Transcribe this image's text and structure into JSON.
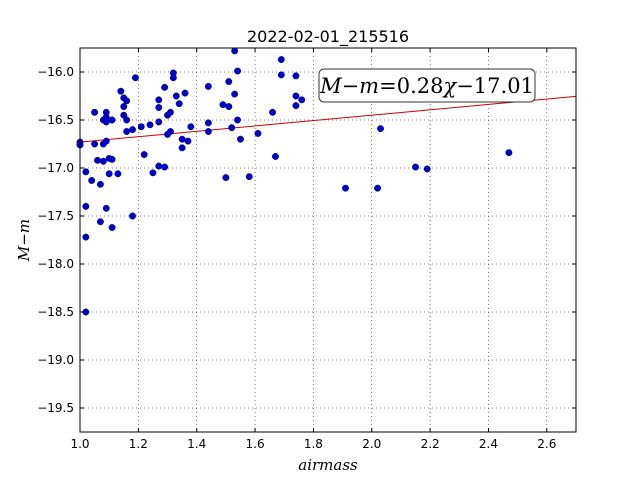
{
  "chart_data": {
    "type": "scatter",
    "title": "2022-02-01_215516",
    "xlabel": "airmass",
    "ylabel": "M−m",
    "xlim": [
      1.0,
      2.7
    ],
    "ylim": [
      -19.75,
      -15.75
    ],
    "x_ticks": [
      1.0,
      1.2,
      1.4,
      1.6,
      1.8,
      2.0,
      2.2,
      2.4,
      2.6
    ],
    "x_tick_labels": [
      "1.0",
      "1.2",
      "1.4",
      "1.6",
      "1.8",
      "2.0",
      "2.2",
      "2.4",
      "2.6"
    ],
    "y_ticks": [
      -16.0,
      -16.5,
      -17.0,
      -17.5,
      -18.0,
      -18.5,
      -19.0,
      -19.5
    ],
    "y_tick_labels": [
      "−16.0",
      "−16.5",
      "−17.0",
      "−17.5",
      "−18.0",
      "−18.5",
      "−19.0",
      "−19.5"
    ],
    "grid": true,
    "point_color": "#0000cc",
    "fit_color": "#cc0000",
    "fit": {
      "slope": 0.28,
      "intercept": -17.01
    },
    "annotation": {
      "lhs": "M−m",
      "eq": "=",
      "rhs_num": "0.28",
      "rhs_var": "χ",
      "rhs_tail": "−17.01"
    },
    "points": [
      {
        "x": 1.0,
        "y": -16.73
      },
      {
        "x": 1.0,
        "y": -16.76
      },
      {
        "x": 1.02,
        "y": -17.04
      },
      {
        "x": 1.02,
        "y": -17.4
      },
      {
        "x": 1.02,
        "y": -17.72
      },
      {
        "x": 1.02,
        "y": -18.5
      },
      {
        "x": 1.04,
        "y": -17.13
      },
      {
        "x": 1.05,
        "y": -16.75
      },
      {
        "x": 1.05,
        "y": -16.42
      },
      {
        "x": 1.06,
        "y": -16.92
      },
      {
        "x": 1.07,
        "y": -17.17
      },
      {
        "x": 1.07,
        "y": -17.56
      },
      {
        "x": 1.08,
        "y": -16.5
      },
      {
        "x": 1.08,
        "y": -16.75
      },
      {
        "x": 1.08,
        "y": -16.93
      },
      {
        "x": 1.09,
        "y": -16.52
      },
      {
        "x": 1.09,
        "y": -17.42
      },
      {
        "x": 1.09,
        "y": -16.47
      },
      {
        "x": 1.09,
        "y": -16.42
      },
      {
        "x": 1.09,
        "y": -16.72
      },
      {
        "x": 1.1,
        "y": -16.9
      },
      {
        "x": 1.1,
        "y": -17.06
      },
      {
        "x": 1.11,
        "y": -16.5
      },
      {
        "x": 1.11,
        "y": -16.91
      },
      {
        "x": 1.11,
        "y": -17.62
      },
      {
        "x": 1.13,
        "y": -17.06
      },
      {
        "x": 1.14,
        "y": -16.2
      },
      {
        "x": 1.15,
        "y": -16.27
      },
      {
        "x": 1.15,
        "y": -16.36
      },
      {
        "x": 1.15,
        "y": -16.45
      },
      {
        "x": 1.16,
        "y": -16.5
      },
      {
        "x": 1.16,
        "y": -16.62
      },
      {
        "x": 1.16,
        "y": -16.3
      },
      {
        "x": 1.18,
        "y": -16.6
      },
      {
        "x": 1.18,
        "y": -17.5
      },
      {
        "x": 1.19,
        "y": -16.06
      },
      {
        "x": 1.21,
        "y": -16.57
      },
      {
        "x": 1.22,
        "y": -16.86
      },
      {
        "x": 1.24,
        "y": -16.55
      },
      {
        "x": 1.25,
        "y": -17.05
      },
      {
        "x": 1.27,
        "y": -16.37
      },
      {
        "x": 1.27,
        "y": -16.29
      },
      {
        "x": 1.27,
        "y": -16.52
      },
      {
        "x": 1.27,
        "y": -16.98
      },
      {
        "x": 1.29,
        "y": -16.99
      },
      {
        "x": 1.29,
        "y": -16.16
      },
      {
        "x": 1.3,
        "y": -16.45
      },
      {
        "x": 1.3,
        "y": -16.65
      },
      {
        "x": 1.31,
        "y": -16.42
      },
      {
        "x": 1.31,
        "y": -16.62
      },
      {
        "x": 1.32,
        "y": -16.01
      },
      {
        "x": 1.32,
        "y": -16.06
      },
      {
        "x": 1.33,
        "y": -16.25
      },
      {
        "x": 1.34,
        "y": -16.33
      },
      {
        "x": 1.35,
        "y": -16.7
      },
      {
        "x": 1.35,
        "y": -16.79
      },
      {
        "x": 1.36,
        "y": -16.22
      },
      {
        "x": 1.37,
        "y": -16.72
      },
      {
        "x": 1.38,
        "y": -16.57
      },
      {
        "x": 1.44,
        "y": -16.15
      },
      {
        "x": 1.44,
        "y": -16.53
      },
      {
        "x": 1.44,
        "y": -16.62
      },
      {
        "x": 1.49,
        "y": -16.34
      },
      {
        "x": 1.5,
        "y": -17.1
      },
      {
        "x": 1.51,
        "y": -16.36
      },
      {
        "x": 1.51,
        "y": -16.1
      },
      {
        "x": 1.52,
        "y": -16.58
      },
      {
        "x": 1.53,
        "y": -15.78
      },
      {
        "x": 1.53,
        "y": -16.23
      },
      {
        "x": 1.54,
        "y": -16.5
      },
      {
        "x": 1.54,
        "y": -15.99
      },
      {
        "x": 1.55,
        "y": -16.7
      },
      {
        "x": 1.58,
        "y": -17.09
      },
      {
        "x": 1.61,
        "y": -16.64
      },
      {
        "x": 1.66,
        "y": -16.42
      },
      {
        "x": 1.67,
        "y": -16.88
      },
      {
        "x": 1.69,
        "y": -15.87
      },
      {
        "x": 1.69,
        "y": -16.03
      },
      {
        "x": 1.74,
        "y": -16.04
      },
      {
        "x": 1.74,
        "y": -16.25
      },
      {
        "x": 1.74,
        "y": -16.35
      },
      {
        "x": 1.76,
        "y": -16.29
      },
      {
        "x": 1.91,
        "y": -17.21
      },
      {
        "x": 2.02,
        "y": -17.21
      },
      {
        "x": 2.03,
        "y": -16.59
      },
      {
        "x": 2.15,
        "y": -16.99
      },
      {
        "x": 2.19,
        "y": -17.01
      },
      {
        "x": 2.47,
        "y": -16.84
      }
    ]
  }
}
